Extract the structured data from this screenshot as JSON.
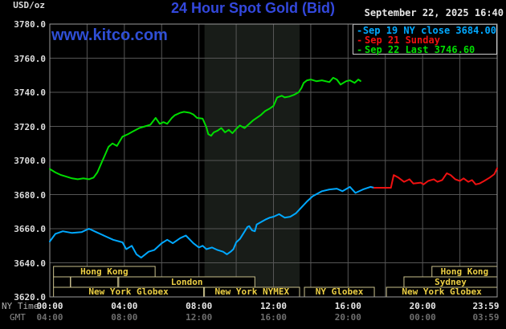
{
  "header": {
    "usd_oz": "USD/oz",
    "title": "24 Hour Spot Gold (Bid)",
    "date": "September 22, 2025 16:40"
  },
  "watermark": "www.kitco.com",
  "legend": {
    "marker": "-",
    "items": [
      {
        "label": "Sep 19 NY close 3684.00",
        "color": "#00a8ff"
      },
      {
        "label": "Sep 21 Sunday",
        "color": "#ee1111"
      },
      {
        "label": "Sep 22 Last 3746.60",
        "color": "#00dd00"
      }
    ]
  },
  "axes": {
    "ny_time_label": "NY Time",
    "gmt_label": "GMT",
    "y_ticks": [
      "3780.0",
      "3760.0",
      "3740.0",
      "3720.0",
      "3700.0",
      "3680.0",
      "3660.0",
      "3640.0",
      "3620.0"
    ],
    "x_ticks": [
      {
        "hour": 0,
        "ny": "00:00",
        "gmt": "04:00"
      },
      {
        "hour": 4,
        "ny": "04:00",
        "gmt": "08:00"
      },
      {
        "hour": 8,
        "ny": "08:00",
        "gmt": "12:00"
      },
      {
        "hour": 12,
        "ny": "12:00",
        "gmt": "16:00"
      },
      {
        "hour": 16,
        "ny": "16:00",
        "gmt": "20:00"
      },
      {
        "hour": 20,
        "ny": "20:00",
        "gmt": "00:00"
      },
      {
        "hour": 23.983,
        "ny": "23:59",
        "gmt": "03:59"
      }
    ]
  },
  "sessions": {
    "border_color": "#c9c08d",
    "text_color": "#eccf44",
    "rows": [
      {
        "boxes": [
          {
            "start": 0.2,
            "end": 5.65,
            "label": "Hong Kong"
          },
          {
            "start": 20.5,
            "end": 24,
            "label": "Hong Kong"
          }
        ]
      },
      {
        "boxes": [
          {
            "start": 0.2,
            "end": 1.1,
            "label": ""
          },
          {
            "start": 1.12,
            "end": 3.65,
            "label": ""
          },
          {
            "start": 3.7,
            "end": 11.0,
            "label": "London"
          },
          {
            "start": 19.0,
            "end": 24,
            "label": "Sydney"
          }
        ]
      },
      {
        "boxes": [
          {
            "start": 0.2,
            "end": 8.25,
            "label": "New York Globex"
          },
          {
            "start": 8.3,
            "end": 13.4,
            "label": "New York NYMEX"
          },
          {
            "start": 13.66,
            "end": 17.41,
            "label": "NY Globex"
          },
          {
            "start": 18.06,
            "end": 24,
            "label": "New York Globex"
          }
        ]
      }
    ]
  },
  "chart_data": {
    "type": "line",
    "title": "24 Hour Spot Gold (Bid)",
    "y_unit": "USD/oz",
    "ylim": [
      3620,
      3780
    ],
    "y_tick_step": 20,
    "x_range_hours": [
      0,
      24
    ],
    "grid": true,
    "legend_position": "top-right",
    "nymex_shaded_hours": [
      8.3,
      13.4
    ],
    "shade_color": "#181c18",
    "grid_color": "#565656",
    "border_color": "#9a9a9a",
    "series": [
      {
        "name": "Sep 19 NY close 3684.00",
        "color": "#00a8ff",
        "points": [
          [
            0,
            3652.5
          ],
          [
            0.3,
            3657
          ],
          [
            0.7,
            3658.5
          ],
          [
            1.2,
            3657.5
          ],
          [
            1.7,
            3658
          ],
          [
            2.1,
            3660
          ],
          [
            2.5,
            3658
          ],
          [
            3.0,
            3655.5
          ],
          [
            3.4,
            3653.5
          ],
          [
            3.9,
            3652
          ],
          [
            4.1,
            3648
          ],
          [
            4.4,
            3650
          ],
          [
            4.65,
            3645
          ],
          [
            4.9,
            3643
          ],
          [
            5.3,
            3646.5
          ],
          [
            5.6,
            3647.5
          ],
          [
            6.0,
            3651.5
          ],
          [
            6.3,
            3653.5
          ],
          [
            6.6,
            3651.5
          ],
          [
            7.0,
            3654.5
          ],
          [
            7.3,
            3656
          ],
          [
            7.7,
            3651.5
          ],
          [
            8.0,
            3649
          ],
          [
            8.2,
            3650
          ],
          [
            8.4,
            3648
          ],
          [
            8.7,
            3649
          ],
          [
            9.0,
            3647.5
          ],
          [
            9.3,
            3646.5
          ],
          [
            9.5,
            3645
          ],
          [
            9.7,
            3646.5
          ],
          [
            9.85,
            3648
          ],
          [
            10.0,
            3652
          ],
          [
            10.2,
            3654
          ],
          [
            10.4,
            3657.5
          ],
          [
            10.6,
            3661
          ],
          [
            10.7,
            3661.5
          ],
          [
            10.85,
            3659
          ],
          [
            11.0,
            3658.5
          ],
          [
            11.1,
            3662.5
          ],
          [
            11.35,
            3664
          ],
          [
            11.6,
            3665.5
          ],
          [
            11.8,
            3666.5
          ],
          [
            12.0,
            3667
          ],
          [
            12.3,
            3668.5
          ],
          [
            12.6,
            3666.5
          ],
          [
            12.9,
            3667
          ],
          [
            13.2,
            3669
          ],
          [
            13.5,
            3672.5
          ],
          [
            13.8,
            3676
          ],
          [
            14.1,
            3679
          ],
          [
            14.6,
            3682
          ],
          [
            15.0,
            3683
          ],
          [
            15.4,
            3683.5
          ],
          [
            15.7,
            3682
          ],
          [
            16.1,
            3684.5
          ],
          [
            16.4,
            3681
          ],
          [
            16.8,
            3683
          ],
          [
            17.2,
            3684.5
          ],
          [
            17.4,
            3684
          ]
        ]
      },
      {
        "name": "Sep 21 Sunday",
        "color": "#ee1111",
        "points": [
          [
            17.4,
            3684
          ],
          [
            18.3,
            3684
          ],
          [
            18.45,
            3691.5
          ],
          [
            18.7,
            3690
          ],
          [
            19.0,
            3687.5
          ],
          [
            19.3,
            3689
          ],
          [
            19.5,
            3686.5
          ],
          [
            19.9,
            3687
          ],
          [
            20.05,
            3686
          ],
          [
            20.3,
            3688
          ],
          [
            20.6,
            3689
          ],
          [
            20.8,
            3687.5
          ],
          [
            21.05,
            3688.5
          ],
          [
            21.3,
            3692.5
          ],
          [
            21.5,
            3691.5
          ],
          [
            21.75,
            3689
          ],
          [
            22.0,
            3688
          ],
          [
            22.2,
            3689.5
          ],
          [
            22.45,
            3687.5
          ],
          [
            22.65,
            3688.5
          ],
          [
            22.85,
            3686
          ],
          [
            23.05,
            3686.5
          ],
          [
            23.3,
            3688
          ],
          [
            23.6,
            3690
          ],
          [
            23.85,
            3692
          ],
          [
            24.0,
            3695.5
          ]
        ]
      },
      {
        "name": "Sep 22 Last 3746.60",
        "color": "#00dd00",
        "points": [
          [
            0,
            3695
          ],
          [
            0.3,
            3693
          ],
          [
            0.6,
            3691.5
          ],
          [
            0.9,
            3690.5
          ],
          [
            1.2,
            3689.5
          ],
          [
            1.5,
            3689
          ],
          [
            1.8,
            3689.5
          ],
          [
            2.1,
            3689
          ],
          [
            2.35,
            3690
          ],
          [
            2.55,
            3693
          ],
          [
            2.75,
            3698
          ],
          [
            2.95,
            3703
          ],
          [
            3.15,
            3708
          ],
          [
            3.36,
            3710
          ],
          [
            3.6,
            3708.5
          ],
          [
            3.9,
            3714
          ],
          [
            4.2,
            3715.5
          ],
          [
            4.45,
            3717
          ],
          [
            4.8,
            3719
          ],
          [
            5.1,
            3720
          ],
          [
            5.4,
            3721
          ],
          [
            5.68,
            3725
          ],
          [
            5.9,
            3721.5
          ],
          [
            6.1,
            3722.5
          ],
          [
            6.3,
            3721.5
          ],
          [
            6.55,
            3725
          ],
          [
            6.7,
            3726.5
          ],
          [
            7.0,
            3728
          ],
          [
            7.2,
            3728.5
          ],
          [
            7.5,
            3728
          ],
          [
            7.7,
            3727
          ],
          [
            7.9,
            3725
          ],
          [
            8.2,
            3724.5
          ],
          [
            8.4,
            3719.5
          ],
          [
            8.5,
            3715.5
          ],
          [
            8.65,
            3714.5
          ],
          [
            8.8,
            3716.5
          ],
          [
            9.0,
            3717.5
          ],
          [
            9.2,
            3719
          ],
          [
            9.4,
            3716.5
          ],
          [
            9.6,
            3718
          ],
          [
            9.8,
            3716
          ],
          [
            10.0,
            3718.5
          ],
          [
            10.2,
            3720.5
          ],
          [
            10.45,
            3719
          ],
          [
            10.65,
            3721
          ],
          [
            10.9,
            3723.5
          ],
          [
            11.1,
            3725
          ],
          [
            11.3,
            3726.5
          ],
          [
            11.55,
            3729
          ],
          [
            11.8,
            3730.5
          ],
          [
            12.0,
            3732
          ],
          [
            12.2,
            3737
          ],
          [
            12.45,
            3738
          ],
          [
            12.6,
            3737
          ],
          [
            12.85,
            3737.5
          ],
          [
            13.1,
            3738.5
          ],
          [
            13.35,
            3740
          ],
          [
            13.5,
            3742.5
          ],
          [
            13.62,
            3745.5
          ],
          [
            13.8,
            3747
          ],
          [
            14.0,
            3747.5
          ],
          [
            14.3,
            3746.5
          ],
          [
            14.6,
            3747
          ],
          [
            15.0,
            3746
          ],
          [
            15.2,
            3748.5
          ],
          [
            15.4,
            3747.5
          ],
          [
            15.6,
            3744.5
          ],
          [
            15.9,
            3746.5
          ],
          [
            16.1,
            3747
          ],
          [
            16.35,
            3745.5
          ],
          [
            16.55,
            3747.5
          ],
          [
            16.67,
            3746.6
          ]
        ]
      }
    ]
  }
}
